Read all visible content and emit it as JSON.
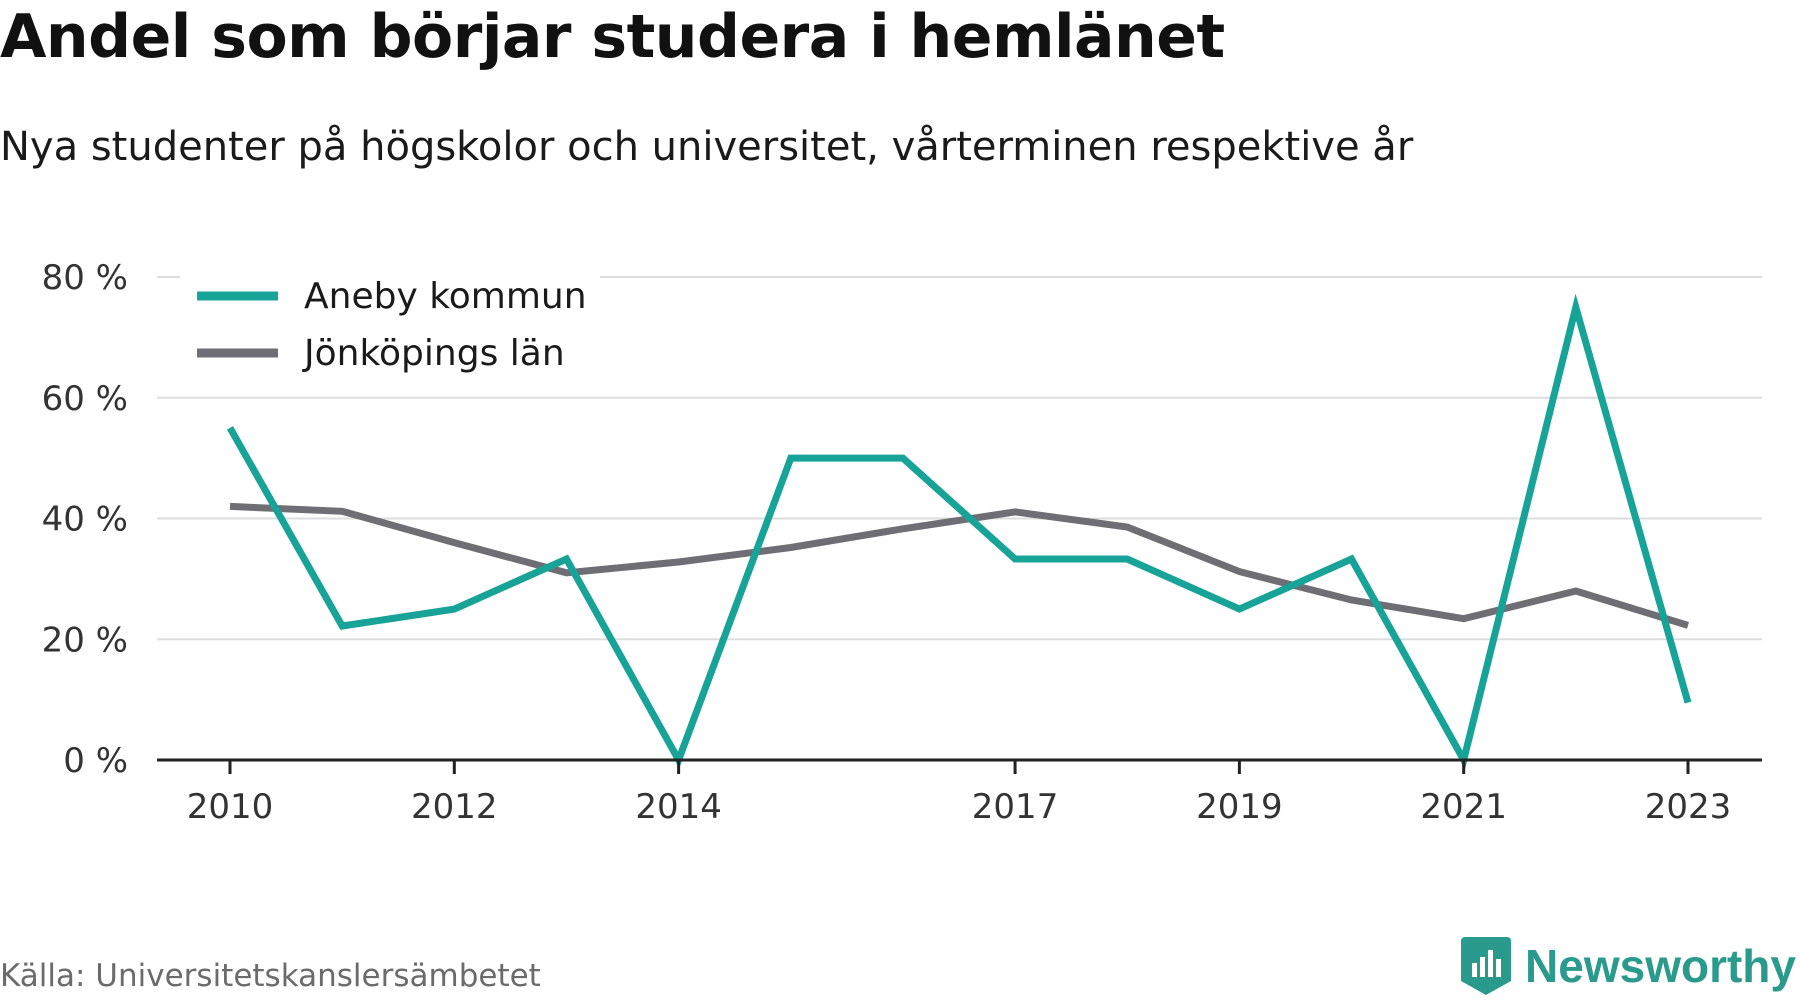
{
  "header": {
    "title": "Andel som börjar studera i hemlänet",
    "subtitle": "Nya studenter på högskolor och universitet, vårterminen respektive år"
  },
  "footer": {
    "source": "Källa: Universitetskanslersämbetet",
    "brand": "Newsworthy"
  },
  "colors": {
    "aneby": "#17a398",
    "lan": "#6e6e74",
    "grid": "#dddddd",
    "axis": "#222222",
    "brand": "#2a9a8c"
  },
  "chart_data": {
    "type": "line",
    "x": [
      2010,
      2011,
      2012,
      2013,
      2014,
      2015,
      2016,
      2017,
      2018,
      2019,
      2020,
      2021,
      2022,
      2023
    ],
    "x_ticks": [
      2010,
      2012,
      2014,
      2017,
      2019,
      2021,
      2023
    ],
    "y_ticks": [
      0,
      20,
      40,
      60,
      80
    ],
    "y_tick_labels": [
      "0 %",
      "20 %",
      "40 %",
      "60 %",
      "80 %"
    ],
    "ylim": [
      0,
      80
    ],
    "grid": true,
    "legend": "top-left",
    "series": [
      {
        "name": "Aneby kommun",
        "color": "#17a398",
        "values": [
          55,
          22.2,
          25,
          33.3,
          0,
          50,
          50,
          33.3,
          33.3,
          25,
          33.3,
          0,
          75,
          9.5
        ]
      },
      {
        "name": "Jönköpings län",
        "color": "#6e6e74",
        "values": [
          42,
          41.2,
          36,
          31,
          32.8,
          35.2,
          38.3,
          41.1,
          38.6,
          31.2,
          26.5,
          23.4,
          28,
          22.3
        ]
      }
    ]
  }
}
